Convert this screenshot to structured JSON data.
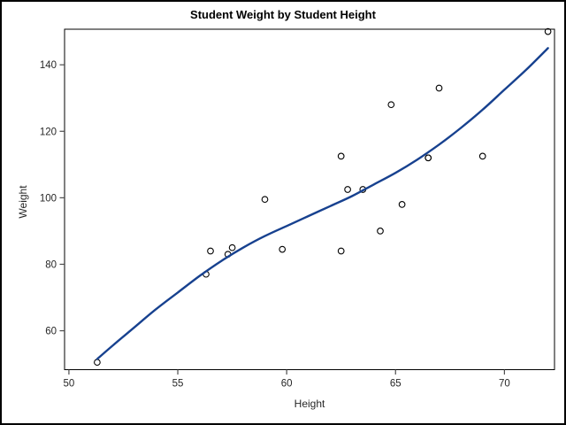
{
  "figure": {
    "background": "#ffffff",
    "border_color": "#000000",
    "frame_color": "#000000",
    "tick_color": "#4d4d4d",
    "text_color": "#262626"
  },
  "chart_data": {
    "type": "scatter",
    "title": "Student Weight by Student Height",
    "xlabel": "Height",
    "ylabel": "Weight",
    "xlim": [
      49.8,
      72.3
    ],
    "ylim": [
      48.3,
      150.7
    ],
    "x_ticks": [
      50,
      55,
      60,
      65,
      70
    ],
    "y_ticks": [
      60,
      80,
      100,
      120,
      140
    ],
    "grid": false,
    "legend": "none",
    "marker": {
      "shape": "open-circle",
      "color": "#000000",
      "radius": 3.3,
      "stroke_width": 1.1
    },
    "fit_line": {
      "type": "smooth-spline",
      "color": "#17418F",
      "width": 2.4
    },
    "points": [
      [
        51.3,
        50.5
      ],
      [
        56.3,
        77.0
      ],
      [
        56.5,
        84.0
      ],
      [
        57.3,
        83.0
      ],
      [
        57.5,
        85.0
      ],
      [
        59.0,
        99.5
      ],
      [
        59.8,
        84.5
      ],
      [
        62.5,
        84.0
      ],
      [
        62.5,
        112.5
      ],
      [
        62.8,
        102.5
      ],
      [
        63.5,
        102.5
      ],
      [
        64.3,
        90.0
      ],
      [
        64.8,
        128.0
      ],
      [
        65.3,
        98.0
      ],
      [
        66.5,
        112.0
      ],
      [
        66.5,
        112.0
      ],
      [
        67.0,
        133.0
      ],
      [
        69.0,
        112.5
      ],
      [
        72.0,
        150.0
      ]
    ],
    "fit_curve": [
      [
        51.3,
        51.5
      ],
      [
        52.0,
        55.5
      ],
      [
        53.0,
        61.0
      ],
      [
        54.0,
        66.5
      ],
      [
        55.0,
        71.5
      ],
      [
        56.0,
        76.5
      ],
      [
        57.0,
        81.0
      ],
      [
        58.0,
        85.0
      ],
      [
        59.0,
        88.5
      ],
      [
        60.0,
        91.5
      ],
      [
        61.0,
        94.5
      ],
      [
        62.0,
        97.5
      ],
      [
        63.0,
        100.5
      ],
      [
        64.0,
        104.0
      ],
      [
        65.0,
        107.5
      ],
      [
        66.0,
        111.5
      ],
      [
        67.0,
        116.0
      ],
      [
        68.0,
        121.0
      ],
      [
        69.0,
        126.5
      ],
      [
        70.0,
        132.5
      ],
      [
        71.0,
        138.5
      ],
      [
        72.0,
        145.0
      ]
    ]
  }
}
